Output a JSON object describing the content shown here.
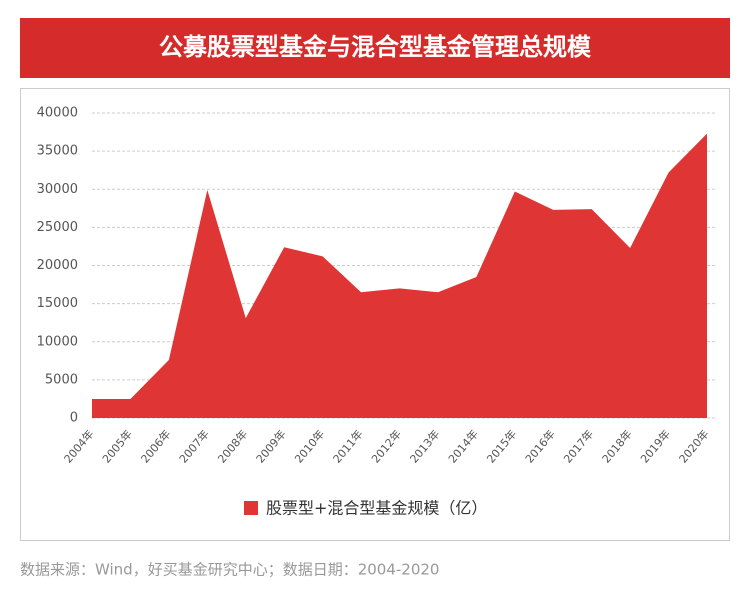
{
  "header": {
    "title": "公募股票型基金与混合型基金管理总规模"
  },
  "chart_data": {
    "type": "area",
    "categories": [
      "2004年",
      "2005年",
      "2006年",
      "2007年",
      "2008年",
      "2009年",
      "2010年",
      "2011年",
      "2012年",
      "2013年",
      "2014年",
      "2015年",
      "2016年",
      "2017年",
      "2018年",
      "2019年",
      "2020年"
    ],
    "series": [
      {
        "name": "股票型+混合型基金规模（亿）",
        "color": "#e03535",
        "values": [
          2500,
          2500,
          7600,
          29900,
          13100,
          22400,
          21200,
          16500,
          17000,
          16500,
          18500,
          29700,
          27300,
          27400,
          22300,
          32200,
          37300
        ]
      }
    ],
    "ylim": [
      0,
      40000
    ],
    "yticks": [
      0,
      5000,
      10000,
      15000,
      20000,
      25000,
      30000,
      35000,
      40000
    ],
    "grid": true
  },
  "footer": {
    "source": "数据来源：Wind，好买基金研究中心；数据日期：2004-2020"
  }
}
